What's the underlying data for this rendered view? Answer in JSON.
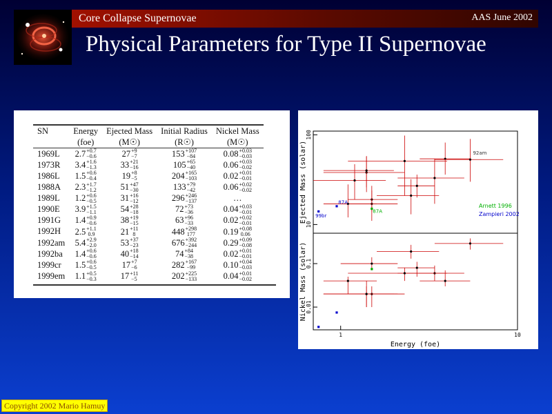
{
  "header": {
    "section": "Core Collapse Supernovae",
    "event": "AAS June 2002"
  },
  "slide_title": "Physical Parameters for Type II Supernovae",
  "table": {
    "columns": [
      {
        "name": "SN",
        "unit": ""
      },
      {
        "name": "Energy",
        "unit": "(foe)"
      },
      {
        "name": "Ejected Mass",
        "unit": "(M☉)"
      },
      {
        "name": "Initial Radius",
        "unit": "(R☉)"
      },
      {
        "name": "Nickel Mass",
        "unit": "(M☉)"
      }
    ],
    "rows": [
      {
        "sn": "1969L",
        "energy": {
          "v": "2.7",
          "p": "+0.7",
          "m": "−0.6"
        },
        "ejected": {
          "v": "27",
          "p": "+9",
          "m": "−7"
        },
        "radius": {
          "v": "153",
          "p": "+107",
          "m": "−84"
        },
        "nickel": {
          "v": "0.08",
          "p": "+0.03",
          "m": "−0.03"
        }
      },
      {
        "sn": "1973R",
        "energy": {
          "v": "3.4",
          "p": "+1.6",
          "m": "−1.3"
        },
        "ejected": {
          "v": "33",
          "p": "+21",
          "m": "−16"
        },
        "radius": {
          "v": "105",
          "p": "+65",
          "m": "−40"
        },
        "nickel": {
          "v": "0.06",
          "p": "+0.03",
          "m": "−0.02"
        }
      },
      {
        "sn": "1986L",
        "energy": {
          "v": "1.5",
          "p": "+0.6",
          "m": "−0.4"
        },
        "ejected": {
          "v": "19",
          "p": "+8",
          "m": "−5"
        },
        "radius": {
          "v": "204",
          "p": "+165",
          "m": "−103"
        },
        "nickel": {
          "v": "0.02",
          "p": "+0.01",
          "m": "−0.01"
        }
      },
      {
        "sn": "1988A",
        "energy": {
          "v": "2.3",
          "p": "+1.7",
          "m": "−1.2"
        },
        "ejected": {
          "v": "51",
          "p": "+47",
          "m": "−30"
        },
        "radius": {
          "v": "133",
          "p": "+79",
          "m": "−42"
        },
        "nickel": {
          "v": "0.06",
          "p": "+0.02",
          "m": "−0.02"
        }
      },
      {
        "sn": "1989L",
        "energy": {
          "v": "1.2",
          "p": "+0.6",
          "m": "−0.5"
        },
        "ejected": {
          "v": "31",
          "p": "+16",
          "m": "−12"
        },
        "radius": {
          "v": "296",
          "p": "+246",
          "m": "−137"
        },
        "nickel": {
          "v": "…",
          "p": "",
          "m": ""
        }
      },
      {
        "sn": "1990E",
        "energy": {
          "v": "3.9",
          "p": "+1.5",
          "m": "−1.1"
        },
        "ejected": {
          "v": "54",
          "p": "+28",
          "m": "−18"
        },
        "radius": {
          "v": "72",
          "p": "+73",
          "m": "−36"
        },
        "nickel": {
          "v": "0.04",
          "p": "+0.03",
          "m": "−0.01"
        }
      },
      {
        "sn": "1991G",
        "energy": {
          "v": "1.4",
          "p": "+0.9",
          "m": "−0.6"
        },
        "ejected": {
          "v": "38",
          "p": "+19",
          "m": "−15"
        },
        "radius": {
          "v": "63",
          "p": "+96",
          "m": "−33"
        },
        "nickel": {
          "v": "0.02",
          "p": "+0.02",
          "m": "−0.01"
        }
      },
      {
        "sn": "1992H",
        "energy": {
          "v": "2.5",
          "p": "+1.1",
          "m": "0.9"
        },
        "ejected": {
          "v": "21",
          "p": "+11",
          "m": "8"
        },
        "radius": {
          "v": "448",
          "p": "+298",
          "m": "177"
        },
        "nickel": {
          "v": "0.19",
          "p": "+0.08",
          "m": "0.06"
        }
      },
      {
        "sn": "1992am",
        "energy": {
          "v": "5.4",
          "p": "+2.9",
          "m": "−2.0"
        },
        "ejected": {
          "v": "53",
          "p": "+37",
          "m": "−23"
        },
        "radius": {
          "v": "676",
          "p": "+392",
          "m": "−244"
        },
        "nickel": {
          "v": "0.29",
          "p": "+0.09",
          "m": "−0.08"
        }
      },
      {
        "sn": "1992ba",
        "energy": {
          "v": "1.4",
          "p": "+0.6",
          "m": "−0.6"
        },
        "ejected": {
          "v": "40",
          "p": "+18",
          "m": "−14"
        },
        "radius": {
          "v": "74",
          "p": "+84",
          "m": "−38"
        },
        "nickel": {
          "v": "0.02",
          "p": "+0.01",
          "m": "−0.01"
        }
      },
      {
        "sn": "1999cr",
        "energy": {
          "v": "1.5",
          "p": "+0.6",
          "m": "−0.5"
        },
        "ejected": {
          "v": "17",
          "p": "+7",
          "m": "−6"
        },
        "radius": {
          "v": "282",
          "p": "+167",
          "m": "−99"
        },
        "nickel": {
          "v": "0.10",
          "p": "+0.04",
          "m": "−0.03"
        }
      },
      {
        "sn": "1999em",
        "energy": {
          "v": "1.1",
          "p": "+0.5",
          "m": "−0.3"
        },
        "ejected": {
          "v": "17",
          "p": "+11",
          "m": "−5"
        },
        "radius": {
          "v": "202",
          "p": "+225",
          "m": "−133"
        },
        "nickel": {
          "v": "0.04",
          "p": "+0.01",
          "m": "−0.02"
        }
      }
    ]
  },
  "chart_data": [
    {
      "type": "scatter",
      "title": "",
      "xlabel": "",
      "ylabel": "Ejected Mass (solar)",
      "x_scale": "log",
      "y_scale": "log",
      "xlim": [
        0.7,
        10
      ],
      "ylim": [
        8,
        110
      ],
      "yticks": [
        {
          "v": 10,
          "label": "10"
        },
        {
          "v": 100,
          "label": "100"
        }
      ],
      "legend": {
        "position": "right",
        "entries": [
          {
            "label": "Arnett 1996",
            "color": "#00b000"
          },
          {
            "label": "Zampieri 2002",
            "color": "#0000cc"
          }
        ]
      },
      "series": [
        {
          "name": "",
          "color": "#cc0000",
          "points": [
            {
              "x": 2.7,
              "y": 27,
              "xe": [
                0.6,
                0.7
              ],
              "ye": [
                7,
                9
              ]
            },
            {
              "x": 3.4,
              "y": 33,
              "xe": [
                1.3,
                1.6
              ],
              "ye": [
                16,
                21
              ]
            },
            {
              "x": 2.3,
              "y": 51,
              "xe": [
                1.2,
                1.7
              ],
              "ye": [
                30,
                47
              ]
            },
            {
              "x": 3.9,
              "y": 54,
              "xe": [
                1.1,
                1.5
              ],
              "ye": [
                18,
                28
              ]
            },
            {
              "x": 2.5,
              "y": 21,
              "xe": [
                0.9,
                1.1
              ],
              "ye": [
                8,
                11
              ]
            },
            {
              "x": 5.4,
              "y": 53,
              "xe": [
                2.0,
                2.9
              ],
              "ye": [
                23,
                37
              ]
            },
            {
              "x": 1.5,
              "y": 19,
              "xe": [
                0.4,
                0.6
              ],
              "ye": [
                5,
                8
              ]
            },
            {
              "x": 1.2,
              "y": 31,
              "xe": [
                0.5,
                0.6
              ],
              "ye": [
                12,
                16
              ]
            },
            {
              "x": 1.4,
              "y": 38,
              "xe": [
                0.6,
                0.9
              ],
              "ye": [
                15,
                19
              ]
            },
            {
              "x": 1.4,
              "y": 40,
              "xe": [
                0.6,
                0.6
              ],
              "ye": [
                14,
                18
              ]
            },
            {
              "x": 1.5,
              "y": 17,
              "xe": [
                0.5,
                0.6
              ],
              "ye": [
                6,
                7
              ]
            },
            {
              "x": 1.1,
              "y": 17,
              "xe": [
                0.3,
                0.5
              ],
              "ye": [
                5,
                11
              ]
            }
          ]
        },
        {
          "name": "Arnett 1996",
          "color": "#00b000",
          "points": [
            {
              "x": 1.5,
              "y": 15
            }
          ]
        },
        {
          "name": "Zampieri 2002",
          "color": "#0000cc",
          "points": [
            {
              "x": 0.75,
              "y": 14
            },
            {
              "x": 0.95,
              "y": 16
            }
          ]
        }
      ],
      "annotations": [
        {
          "text": "87A",
          "x": 0.97,
          "y": 17,
          "color": "#0000cc"
        },
        {
          "text": "87A",
          "x": 1.52,
          "y": 13.5,
          "color": "#00b000"
        },
        {
          "text": "99br",
          "x": 0.72,
          "y": 12,
          "color": "#0000cc"
        },
        {
          "text": "92am",
          "x": 5.6,
          "y": 60,
          "color": "#333333"
        }
      ]
    },
    {
      "type": "scatter",
      "title": "",
      "xlabel": "Energy (foe)",
      "ylabel": "Nickel Mass (solar)",
      "x_scale": "log",
      "y_scale": "log",
      "xlim": [
        0.7,
        10
      ],
      "ylim": [
        0.003,
        0.5
      ],
      "yticks": [
        {
          "v": 0.01,
          "label": "0.01"
        },
        {
          "v": 0.1,
          "label": "0.1"
        }
      ],
      "xticks": [
        {
          "v": 1,
          "label": "1"
        },
        {
          "v": 10,
          "label": "10"
        }
      ],
      "series": [
        {
          "name": "",
          "color": "#cc0000",
          "points": [
            {
              "x": 2.7,
              "y": 0.08,
              "xe": [
                0.6,
                0.7
              ],
              "ye": [
                0.03,
                0.03
              ]
            },
            {
              "x": 3.4,
              "y": 0.06,
              "xe": [
                1.3,
                1.6
              ],
              "ye": [
                0.02,
                0.03
              ]
            },
            {
              "x": 1.5,
              "y": 0.02,
              "xe": [
                0.4,
                0.6
              ],
              "ye": [
                0.01,
                0.01
              ]
            },
            {
              "x": 2.3,
              "y": 0.06,
              "xe": [
                1.2,
                1.7
              ],
              "ye": [
                0.02,
                0.02
              ]
            },
            {
              "x": 3.9,
              "y": 0.04,
              "xe": [
                1.1,
                1.5
              ],
              "ye": [
                0.01,
                0.03
              ]
            },
            {
              "x": 1.4,
              "y": 0.02,
              "xe": [
                0.6,
                0.9
              ],
              "ye": [
                0.01,
                0.02
              ]
            },
            {
              "x": 2.5,
              "y": 0.19,
              "xe": [
                0.9,
                1.1
              ],
              "ye": [
                0.06,
                0.08
              ]
            },
            {
              "x": 5.4,
              "y": 0.29,
              "xe": [
                2.0,
                2.9
              ],
              "ye": [
                0.08,
                0.09
              ]
            },
            {
              "x": 1.4,
              "y": 0.02,
              "xe": [
                0.6,
                0.6
              ],
              "ye": [
                0.01,
                0.01
              ]
            },
            {
              "x": 1.5,
              "y": 0.1,
              "xe": [
                0.5,
                0.6
              ],
              "ye": [
                0.03,
                0.04
              ]
            },
            {
              "x": 1.1,
              "y": 0.04,
              "xe": [
                0.3,
                0.5
              ],
              "ye": [
                0.02,
                0.01
              ]
            }
          ]
        },
        {
          "name": "Arnett 1996",
          "color": "#00b000",
          "points": [
            {
              "x": 1.5,
              "y": 0.075
            }
          ]
        },
        {
          "name": "Zampieri 2002",
          "color": "#0000cc",
          "points": [
            {
              "x": 0.75,
              "y": 0.0035
            },
            {
              "x": 0.95,
              "y": 0.0075
            }
          ]
        }
      ]
    }
  ],
  "copyright": "Copyright 2002 Mario Hamuy"
}
